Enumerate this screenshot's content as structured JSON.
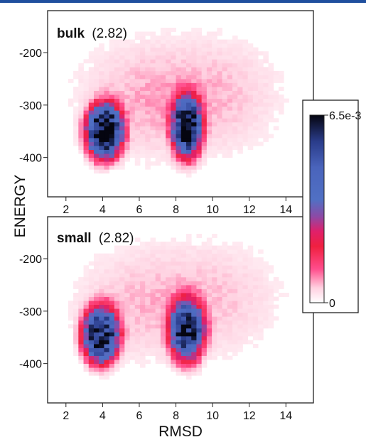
{
  "chart_data": {
    "type": "heatmap",
    "ylabel": "ENERGY",
    "xlabel": "RMSD",
    "xlim": [
      1,
      15.5
    ],
    "ylim": [
      -475,
      -120
    ],
    "xticks": [
      2,
      4,
      6,
      8,
      10,
      12,
      14
    ],
    "yticks": [
      -200,
      -300,
      -400
    ],
    "grid": false,
    "colorbar": {
      "min_label": "0",
      "max_label": "6.5e-3",
      "min": 0,
      "max": 0.0065,
      "stops": [
        {
          "pos": 0.0,
          "color": "#ffffff"
        },
        {
          "pos": 0.08,
          "color": "#ffd0e0"
        },
        {
          "pos": 0.18,
          "color": "#ff4d8c"
        },
        {
          "pos": 0.3,
          "color": "#f02040"
        },
        {
          "pos": 0.38,
          "color": "#e0206a"
        },
        {
          "pos": 0.46,
          "color": "#8c4aa6"
        },
        {
          "pos": 0.55,
          "color": "#5070c4"
        },
        {
          "pos": 0.72,
          "color": "#4a64bc"
        },
        {
          "pos": 0.86,
          "color": "#2a3c8a"
        },
        {
          "pos": 1.0,
          "color": "#050510"
        }
      ]
    },
    "panels": [
      {
        "label_bold": "bulk",
        "label_value": "(2.82)",
        "clusters": [
          {
            "rmsd": 4.1,
            "energy": -350,
            "rmsd_spread": 0.8,
            "energy_spread": 42,
            "peak_density": 0.0065
          },
          {
            "rmsd": 8.6,
            "energy": -340,
            "rmsd_spread": 0.65,
            "energy_spread": 48,
            "peak_density": 0.006
          }
        ]
      },
      {
        "label_bold": "small",
        "label_value": "(2.82)",
        "clusters": [
          {
            "rmsd": 3.9,
            "energy": -345,
            "rmsd_spread": 0.8,
            "energy_spread": 44,
            "peak_density": 0.0058
          },
          {
            "rmsd": 8.6,
            "energy": -335,
            "rmsd_spread": 0.75,
            "energy_spread": 48,
            "peak_density": 0.0055
          }
        ]
      }
    ]
  }
}
